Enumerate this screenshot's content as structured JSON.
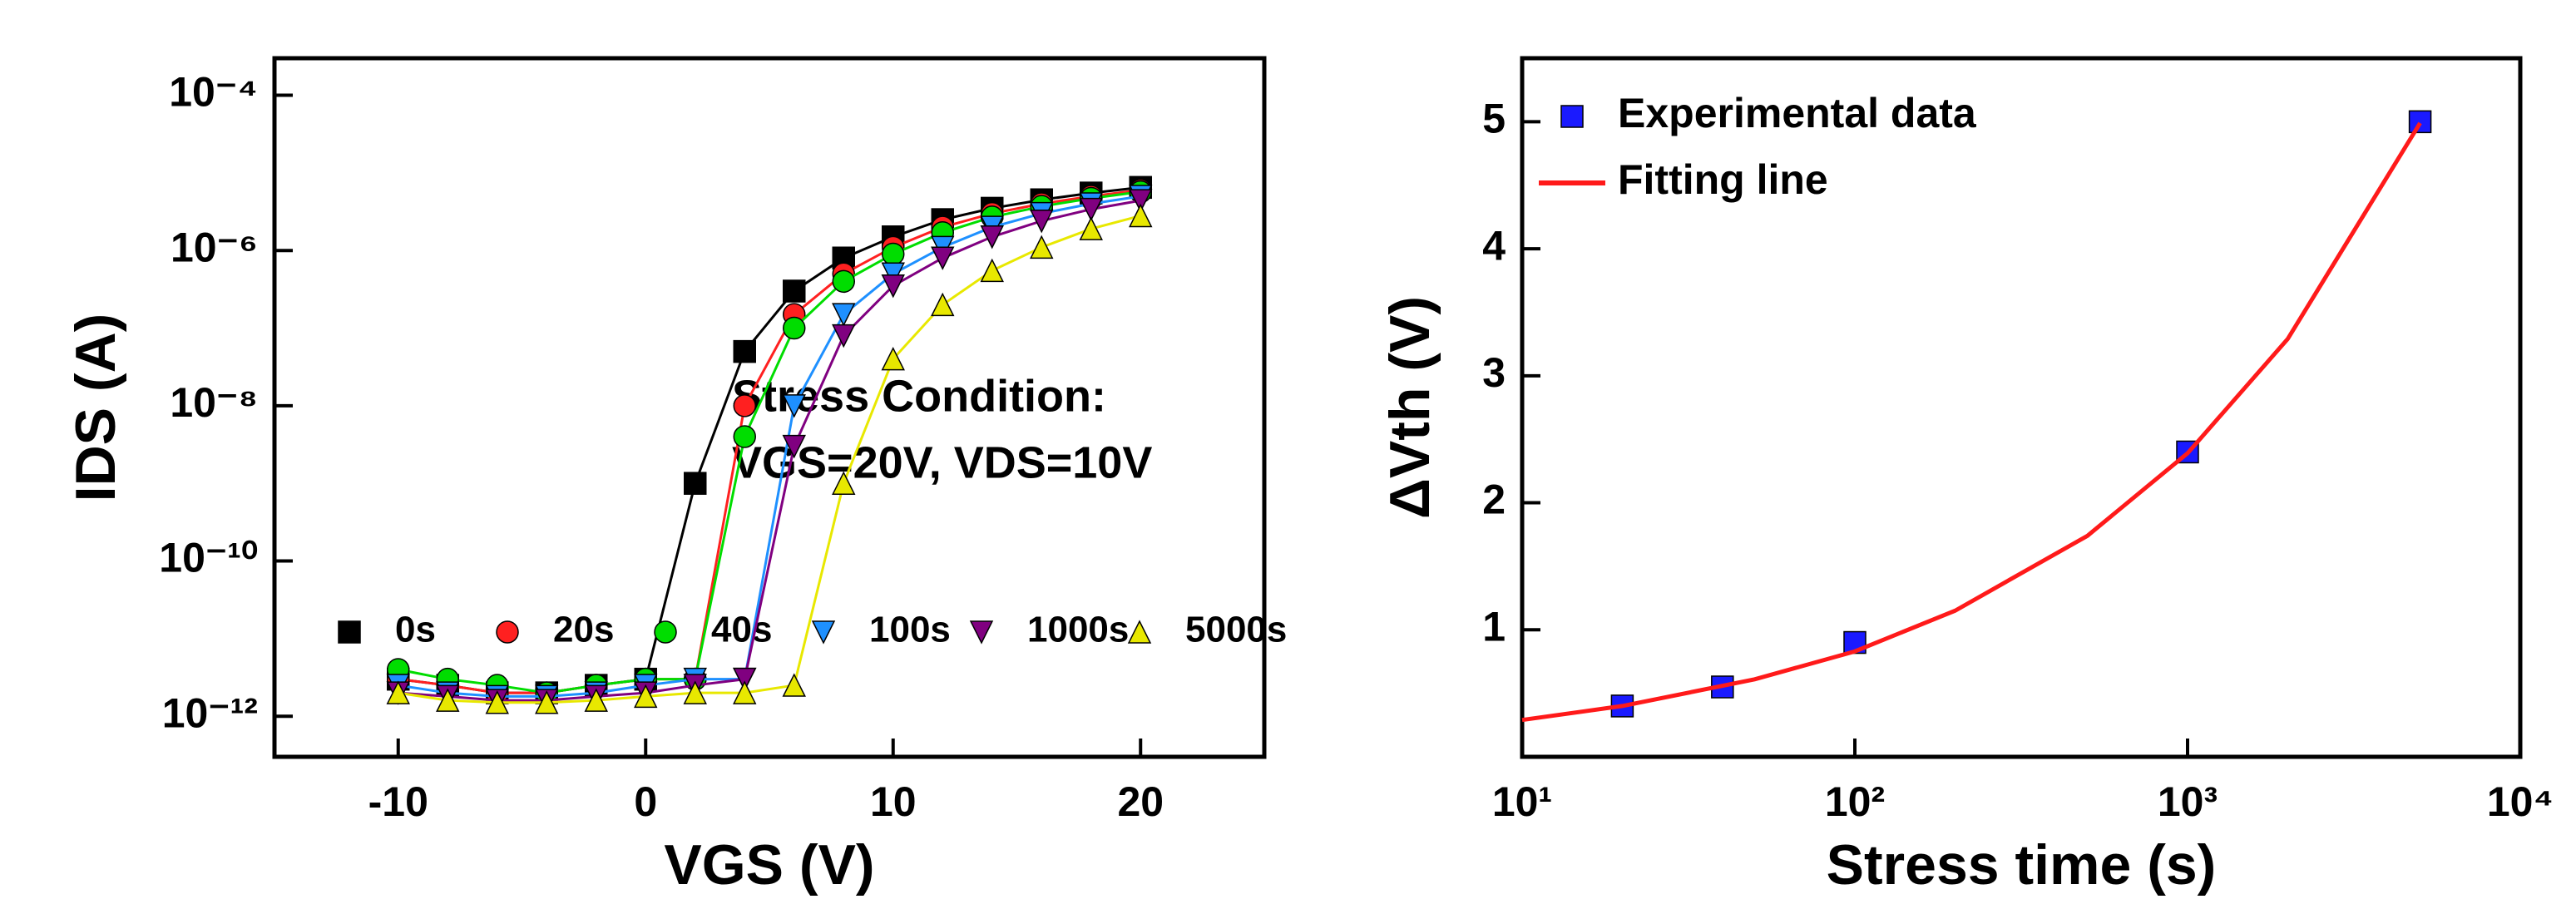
{
  "chart_data": [
    {
      "type": "line",
      "xscale": "linear",
      "yscale": "log",
      "xlabel": "VGS (V)",
      "ylabel": "IDS (A)",
      "annotations": [
        "Stress Condition:",
        "VGS=20V, VDS=10V"
      ],
      "xlim": [
        -15,
        25
      ],
      "xticks": [
        -10,
        0,
        10,
        20
      ],
      "ylim": [
        3e-13,
        0.0003
      ],
      "yticks": [
        {
          "value": 1e-12,
          "label": "10⁻¹²"
        },
        {
          "value": 1e-10,
          "label": "10⁻¹⁰"
        },
        {
          "value": 1e-08,
          "label": "10⁻⁸"
        },
        {
          "value": 1e-06,
          "label": "10⁻⁶"
        },
        {
          "value": 0.0001,
          "label": "10⁻⁴"
        }
      ],
      "x": [
        -10,
        -8,
        -6,
        -4,
        -2,
        0,
        2,
        4,
        6,
        8,
        10,
        12,
        14,
        16,
        18,
        20
      ],
      "series": [
        {
          "name": "0s",
          "color": "#000000",
          "marker": "square",
          "values": [
            3e-12,
            2.5e-12,
            2e-12,
            2e-12,
            2.5e-12,
            3e-12,
            1e-09,
            5e-08,
            3e-07,
            8e-07,
            1.5e-06,
            2.5e-06,
            3.5e-06,
            4.5e-06,
            5.5e-06,
            6.5e-06
          ]
        },
        {
          "name": "20s",
          "color": "#ff2020",
          "marker": "circle",
          "values": [
            3e-12,
            2.5e-12,
            2e-12,
            2e-12,
            2.5e-12,
            3e-12,
            3e-12,
            1e-08,
            1.5e-07,
            5e-07,
            1.1e-06,
            2e-06,
            3e-06,
            4e-06,
            5e-06,
            6e-06
          ]
        },
        {
          "name": "40s",
          "color": "#00dd00",
          "marker": "circle",
          "values": [
            4e-12,
            3e-12,
            2.5e-12,
            2e-12,
            2.5e-12,
            3e-12,
            3e-12,
            4e-09,
            1e-07,
            4e-07,
            9e-07,
            1.7e-06,
            2.7e-06,
            3.7e-06,
            4.7e-06,
            5.7e-06
          ]
        },
        {
          "name": "100s",
          "color": "#1e90ff",
          "marker": "triangle-down",
          "values": [
            2.5e-12,
            2e-12,
            1.8e-12,
            1.8e-12,
            2e-12,
            2.5e-12,
            3e-12,
            3e-12,
            1e-08,
            1.5e-07,
            5e-07,
            1.1e-06,
            2e-06,
            3e-06,
            4e-06,
            5e-06
          ]
        },
        {
          "name": "1000s",
          "color": "#800080",
          "marker": "triangle-down",
          "values": [
            2e-12,
            1.8e-12,
            1.6e-12,
            1.6e-12,
            1.8e-12,
            2e-12,
            2.5e-12,
            3e-12,
            3e-09,
            8e-08,
            3.5e-07,
            8e-07,
            1.5e-06,
            2.4e-06,
            3.4e-06,
            4.4e-06
          ]
        },
        {
          "name": "5000s",
          "color": "#e8e800",
          "marker": "triangle",
          "values": [
            2e-12,
            1.6e-12,
            1.5e-12,
            1.5e-12,
            1.6e-12,
            1.8e-12,
            2e-12,
            2e-12,
            2.5e-12,
            1e-09,
            4e-08,
            2e-07,
            5.5e-07,
            1.1e-06,
            1.9e-06,
            2.8e-06
          ]
        }
      ]
    },
    {
      "type": "scatter",
      "xscale": "log",
      "yscale": "linear",
      "xlabel": "Stress time (s)",
      "ylabel": "ΔVth (V)",
      "xlim": [
        10,
        10000
      ],
      "xticks": [
        {
          "value": 10,
          "label": "10¹"
        },
        {
          "value": 100,
          "label": "10²"
        },
        {
          "value": 1000,
          "label": "10³"
        },
        {
          "value": 10000,
          "label": "10⁴"
        }
      ],
      "ylim": [
        0,
        5.5
      ],
      "yticks": [
        1,
        2,
        3,
        4,
        5
      ],
      "series": [
        {
          "name": "Experimental data",
          "color": "#1a1aff",
          "mode": "markers",
          "x": [
            20,
            40,
            100,
            1000,
            5000
          ],
          "values": [
            0.4,
            0.55,
            0.9,
            2.4,
            5.0
          ]
        },
        {
          "name": "Fitting line",
          "color": "#ff1a1a",
          "mode": "line",
          "x": [
            10,
            20,
            50,
            100,
            200,
            500,
            1000,
            2000,
            5000
          ],
          "values": [
            0.29,
            0.4,
            0.61,
            0.83,
            1.15,
            1.74,
            2.39,
            3.29,
            4.99
          ]
        }
      ]
    }
  ]
}
